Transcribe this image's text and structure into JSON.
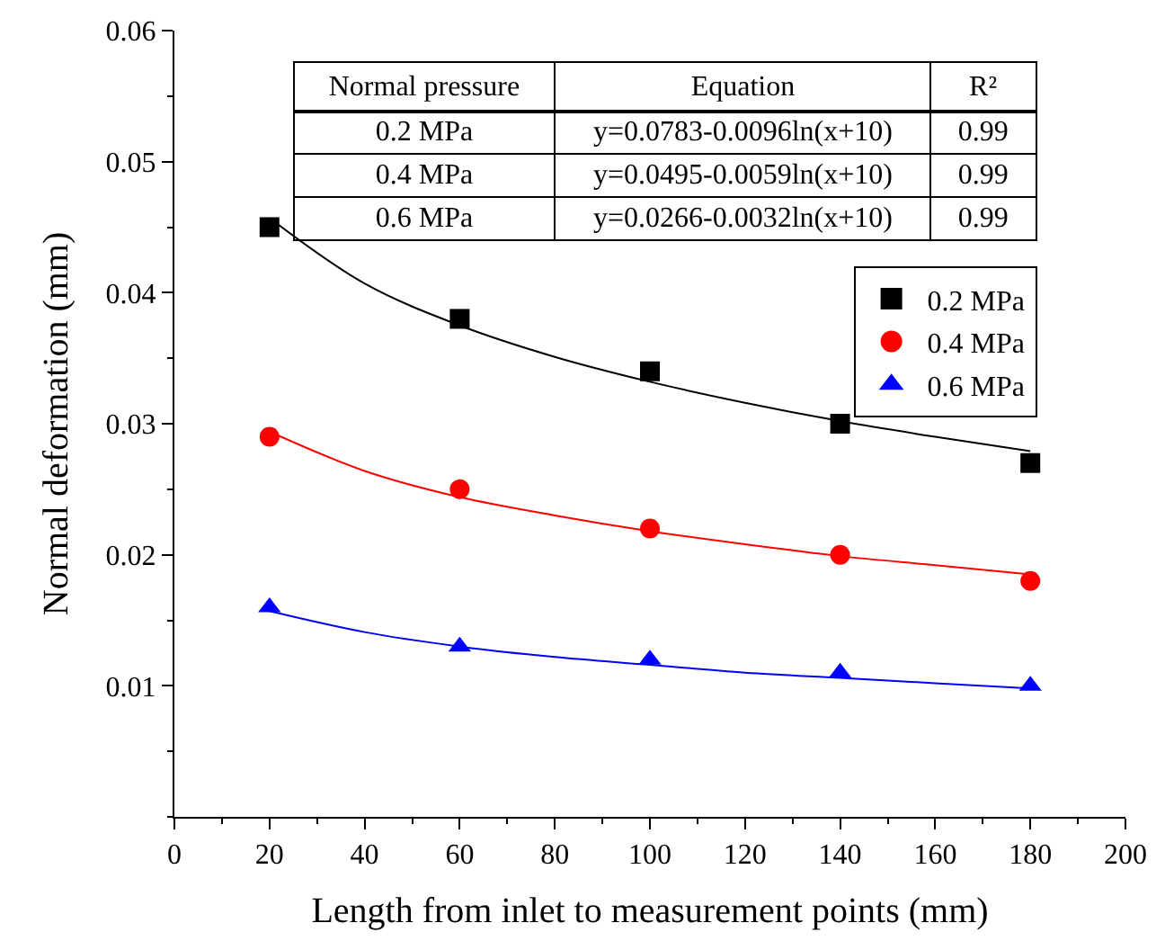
{
  "chart_data": {
    "type": "scatter",
    "xlabel": "Length from inlet to measurement points (mm)",
    "ylabel": "Normal deformation (mm)",
    "x": [
      20,
      60,
      100,
      140,
      180
    ],
    "series": [
      {
        "name": "0.2 MPa",
        "color": "#000000",
        "marker": "square",
        "values": [
          0.045,
          0.038,
          0.034,
          0.03,
          0.027
        ]
      },
      {
        "name": "0.4 MPa",
        "color": "#ff0000",
        "marker": "circle",
        "values": [
          0.029,
          0.025,
          0.022,
          0.02,
          0.018
        ]
      },
      {
        "name": "0.6 MPa",
        "color": "#0000ff",
        "marker": "triangle",
        "values": [
          0.016,
          0.013,
          0.012,
          0.011,
          0.01
        ]
      },
      {
        "type": "line",
        "color": "#000000",
        "x": [
          20,
          40,
          60,
          80,
          100,
          120,
          140,
          160,
          180
        ],
        "values": [
          0.0457,
          0.0407,
          0.0375,
          0.0351,
          0.0332,
          0.0316,
          0.0302,
          0.029,
          0.0279
        ]
      },
      {
        "type": "line",
        "color": "#ff0000",
        "x": [
          20,
          40,
          60,
          80,
          100,
          120,
          140,
          160,
          180
        ],
        "values": [
          0.0294,
          0.0264,
          0.0244,
          0.023,
          0.0218,
          0.0208,
          0.0199,
          0.0192,
          0.0185
        ]
      },
      {
        "type": "line",
        "color": "#0000ff",
        "x": [
          20,
          40,
          60,
          80,
          100,
          120,
          140,
          160,
          180
        ],
        "values": [
          0.0157,
          0.0141,
          0.013,
          0.0122,
          0.0116,
          0.011,
          0.0106,
          0.0102,
          0.0098
        ]
      }
    ],
    "annotations": [
      "Normal pressure",
      "Equation",
      "R²",
      "0.2 MPa",
      "y=0.0783-0.0096ln(x+10)",
      "0.99",
      "0.4 MPa",
      "y=0.0495-0.0059ln(x+10)",
      "0.99",
      "0.6 MPa",
      "y=0.0266-0.0032ln(x+10)",
      "0.99"
    ],
    "xlim": [
      0,
      200
    ],
    "xticks": [
      0,
      20,
      40,
      60,
      80,
      100,
      120,
      140,
      160,
      180,
      200
    ],
    "ylim": [
      0,
      0.06
    ],
    "yticks": [
      0.01,
      0.02,
      0.03,
      0.04,
      0.05,
      0.06
    ],
    "grid": false,
    "legend": "top right"
  }
}
